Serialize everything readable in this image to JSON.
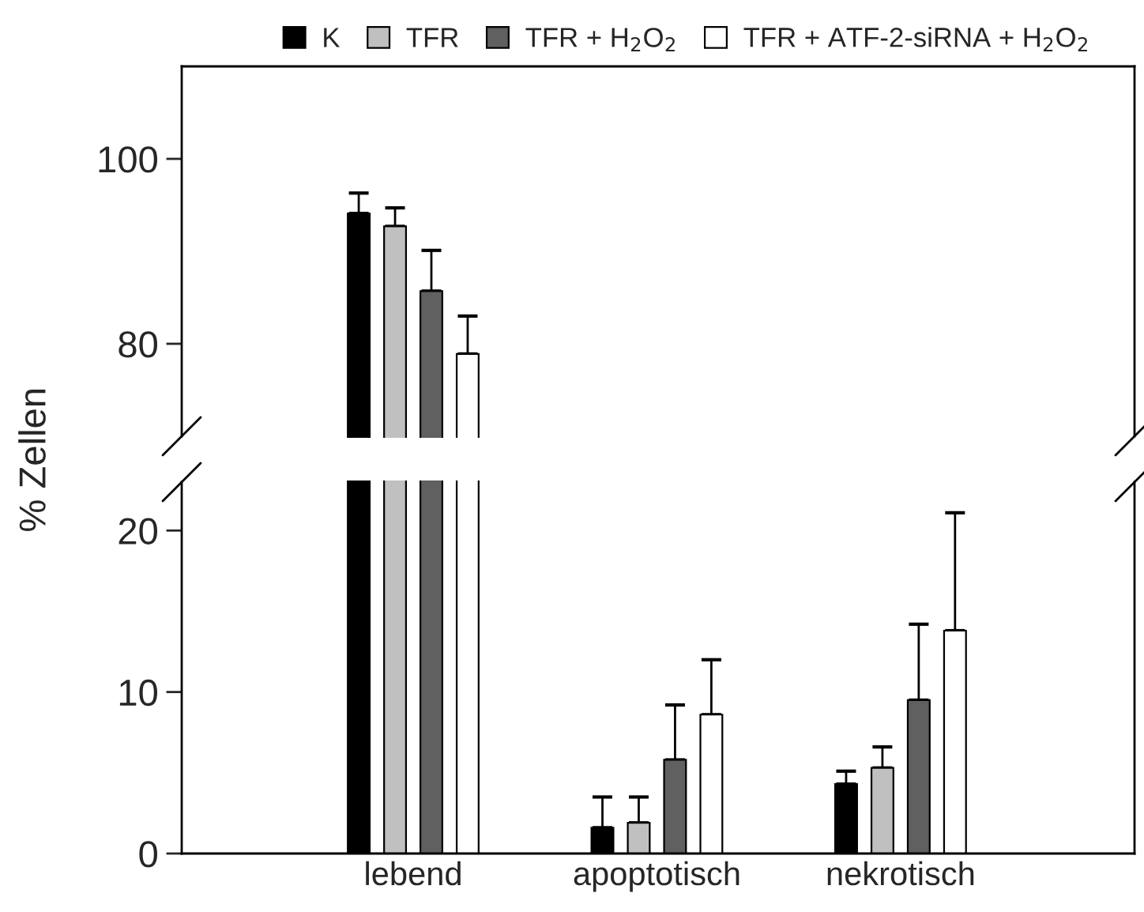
{
  "chart_data": [
    {
      "type": "bar",
      "categories": [
        null,
        null,
        null
      ],
      "ylim": [
        70,
        110
      ],
      "yticks": [
        80,
        100
      ],
      "tick_labels": "y",
      "legend": "top",
      "series": [
        {
          "name": "K",
          "color": "#000000",
          "values": [
            94.1,
            null,
            null
          ],
          "errors": [
            [
              94.1,
              96.3
            ],
            null,
            null
          ]
        },
        {
          "name": "TFR",
          "color": "#c0c0c0",
          "values": [
            92.7,
            null,
            null
          ],
          "errors": [
            [
              92.7,
              94.7
            ],
            null,
            null
          ]
        },
        {
          "name": "TFR + H$_{2}$O$_{2}$",
          "color": "#606060",
          "values": [
            85.7,
            null,
            null
          ],
          "errors": [
            [
              85.7,
              90.1
            ],
            null,
            null
          ]
        },
        {
          "name": "TFR + ATF-2-siRNA + H$_{2}$O$_{2}$",
          "color": "#ffffff",
          "values": [
            78.9,
            null,
            null
          ],
          "errors": [
            [
              78.9,
              83.0
            ],
            null,
            null
          ]
        }
      ]
    },
    {
      "type": "bar",
      "categories": [
        "lebend",
        "apoptotisch",
        "nekrotisch"
      ],
      "ylim": [
        0,
        23
      ],
      "yticks": [
        0,
        10,
        20
      ],
      "ylabel": "% Zellen",
      "series": [
        {
          "color": "#000000",
          "values": [
            null,
            1.6,
            4.3
          ],
          "errors": [
            null,
            [
              1.6,
              3.5
            ],
            [
              4.3,
              5.1
            ]
          ]
        },
        {
          "color": "#c0c0c0",
          "values": [
            null,
            1.9,
            5.3
          ],
          "errors": [
            null,
            [
              1.9,
              3.5
            ],
            [
              5.3,
              6.6
            ]
          ]
        },
        {
          "color": "#606060",
          "values": [
            null,
            5.8,
            9.5
          ],
          "errors": [
            null,
            [
              5.8,
              9.2
            ],
            [
              9.5,
              14.2
            ]
          ]
        },
        {
          "color": "#ffffff",
          "values": [
            null,
            8.6,
            13.8
          ],
          "errors": [
            null,
            [
              8.6,
              12.0
            ],
            [
              13.8,
              21.1
            ]
          ]
        }
      ]
    }
  ]
}
